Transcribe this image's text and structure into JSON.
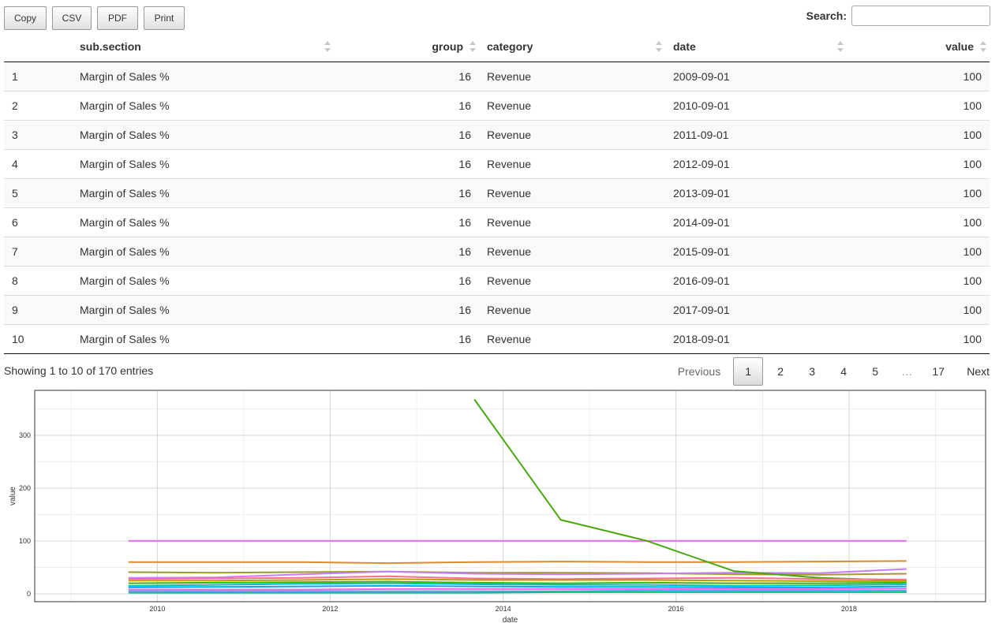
{
  "toolbar": {
    "copy": "Copy",
    "csv": "CSV",
    "pdf": "PDF",
    "print": "Print"
  },
  "search": {
    "label": "Search:",
    "value": ""
  },
  "table": {
    "columns": [
      "",
      "sub.section",
      "group",
      "category",
      "date",
      "value"
    ],
    "rows": [
      [
        "1",
        "Margin of Sales %",
        "16",
        "Revenue",
        "2009-09-01",
        "100"
      ],
      [
        "2",
        "Margin of Sales %",
        "16",
        "Revenue",
        "2010-09-01",
        "100"
      ],
      [
        "3",
        "Margin of Sales %",
        "16",
        "Revenue",
        "2011-09-01",
        "100"
      ],
      [
        "4",
        "Margin of Sales %",
        "16",
        "Revenue",
        "2012-09-01",
        "100"
      ],
      [
        "5",
        "Margin of Sales %",
        "16",
        "Revenue",
        "2013-09-01",
        "100"
      ],
      [
        "6",
        "Margin of Sales %",
        "16",
        "Revenue",
        "2014-09-01",
        "100"
      ],
      [
        "7",
        "Margin of Sales %",
        "16",
        "Revenue",
        "2015-09-01",
        "100"
      ],
      [
        "8",
        "Margin of Sales %",
        "16",
        "Revenue",
        "2016-09-01",
        "100"
      ],
      [
        "9",
        "Margin of Sales %",
        "16",
        "Revenue",
        "2017-09-01",
        "100"
      ],
      [
        "10",
        "Margin of Sales %",
        "16",
        "Revenue",
        "2018-09-01",
        "100"
      ]
    ]
  },
  "info": "Showing 1 to 10 of 170 entries",
  "pager": {
    "previous": "Previous",
    "pages": [
      "1",
      "2",
      "3",
      "4",
      "5"
    ],
    "current": "1",
    "ellipsis": "…",
    "last": "17",
    "next": "Next"
  },
  "chart_data": {
    "type": "line",
    "xlabel": "date",
    "ylabel": "value",
    "xlim": [
      "2008-08-01",
      "2019-08-01"
    ],
    "ylim": [
      -15,
      385
    ],
    "x_ticks": [
      "2010",
      "2012",
      "2014",
      "2016",
      "2018"
    ],
    "y_ticks": [
      0,
      100,
      200,
      300
    ],
    "grid": true,
    "legend": "none",
    "x": [
      "2009-09-01",
      "2010-09-01",
      "2011-09-01",
      "2012-09-01",
      "2013-09-01",
      "2014-09-01",
      "2015-09-01",
      "2016-09-01",
      "2017-09-01",
      "2018-09-01"
    ],
    "series": [
      {
        "color": "#e76bf3",
        "values": [
          100,
          100,
          100,
          100,
          100,
          100,
          100,
          100,
          100,
          100
        ]
      },
      {
        "color": "#d98b30",
        "values": [
          60,
          60,
          60,
          58,
          60,
          61,
          60,
          60,
          61,
          62
        ]
      },
      {
        "color": "#9f9a2a",
        "values": [
          41,
          40,
          41,
          42,
          40,
          40,
          39,
          37,
          36,
          38
        ]
      },
      {
        "color": "#c77cff",
        "values": [
          30,
          31,
          37,
          42,
          38,
          37,
          38,
          40,
          39,
          47
        ]
      },
      {
        "color": "#49a80f",
        "values": [
          null,
          null,
          null,
          null,
          368,
          140,
          100,
          43,
          30,
          25
        ]
      },
      {
        "color": "#ff6c91",
        "values": [
          28,
          29,
          30,
          33,
          29,
          28,
          29,
          30,
          28,
          27
        ]
      },
      {
        "color": "#b79f00",
        "values": [
          25,
          25,
          26,
          28,
          26,
          26,
          26,
          25,
          24,
          24
        ]
      },
      {
        "color": "#39b600",
        "values": [
          20,
          21,
          22,
          23,
          21,
          20,
          21,
          20,
          20,
          21
        ]
      },
      {
        "color": "#00bfc4",
        "values": [
          15,
          17,
          19,
          20,
          18,
          17,
          17,
          15,
          16,
          18
        ]
      },
      {
        "color": "#00a9ff",
        "values": [
          12,
          13,
          14,
          15,
          14,
          13,
          13,
          12,
          12,
          14
        ]
      },
      {
        "color": "#f564e3",
        "values": [
          8,
          8,
          8,
          9,
          9,
          9,
          9,
          9,
          9,
          10
        ]
      },
      {
        "color": "#619cff",
        "values": [
          5,
          5,
          5,
          5,
          5,
          5,
          6,
          6,
          6,
          6
        ]
      },
      {
        "color": "#00c08b",
        "values": [
          2,
          2,
          2,
          2,
          2,
          3,
          3,
          3,
          3,
          3
        ]
      }
    ]
  }
}
